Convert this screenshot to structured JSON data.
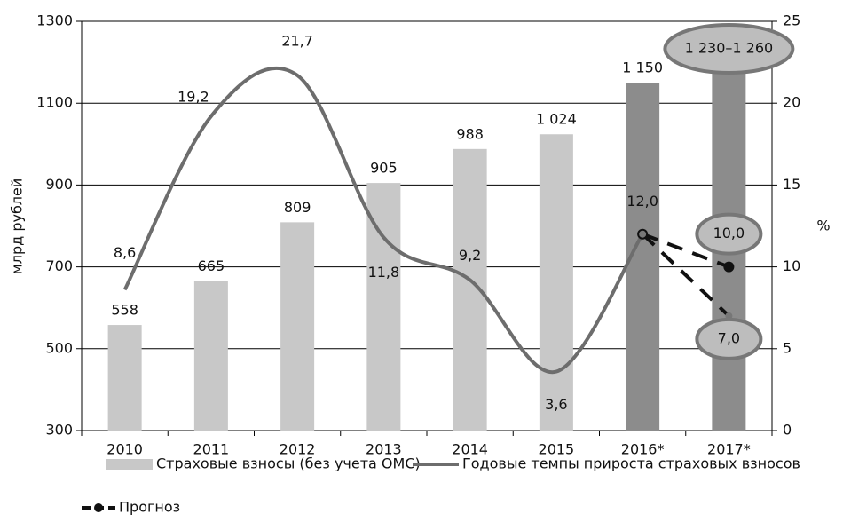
{
  "chart_data": {
    "type": "bar",
    "categories": [
      "2010",
      "2011",
      "2012",
      "2013",
      "2014",
      "2015",
      "2016*",
      "2017*"
    ],
    "ylabel": "млрд рублей",
    "y2label": "%",
    "ylim": [
      300,
      1300
    ],
    "yticks": [
      300,
      500,
      700,
      900,
      1100,
      1300
    ],
    "y2lim": [
      0,
      25
    ],
    "y2ticks": [
      0,
      5,
      10,
      15,
      20,
      25
    ],
    "grid": true,
    "legend": "bottom",
    "series": [
      {
        "name": "Страховые взносы (без учета ОМС)",
        "type": "bar",
        "color": "#c8c8c8",
        "colors": [
          "#c8c8c8",
          "#c8c8c8",
          "#c8c8c8",
          "#c8c8c8",
          "#c8c8c8",
          "#c8c8c8",
          "#8c8c8c",
          "#8c8c8c"
        ],
        "values": [
          558,
          665,
          809,
          905,
          988,
          1024,
          1150,
          1245
        ],
        "value_labels": [
          "558",
          "665",
          "809",
          "905",
          "988",
          "1 024",
          "1 150",
          "1 230–1 260"
        ]
      },
      {
        "name": "Годовые темпы прироста страховых взносов",
        "type": "line",
        "axis": "y2",
        "color": "#6d6d6d",
        "values": [
          8.6,
          19.2,
          21.7,
          11.8,
          9.2,
          3.6,
          12.0,
          null
        ],
        "value_labels": [
          "8,6",
          "19,2",
          "21,7",
          "11,8",
          "9,2",
          "3,6",
          null,
          null
        ]
      },
      {
        "name": "Прогноз",
        "type": "forecast",
        "axis": "y2",
        "color": "#111111",
        "values": [
          null,
          null,
          null,
          null,
          null,
          null,
          12.0,
          10.0
        ],
        "value_labels": [
          null,
          null,
          null,
          null,
          null,
          null,
          "12,0",
          "10,0"
        ],
        "values_alt": [
          null,
          null,
          null,
          null,
          null,
          null,
          12.0,
          7.0
        ],
        "value_labels_alt": [
          null,
          null,
          null,
          null,
          null,
          null,
          null,
          "7,0"
        ]
      }
    ]
  }
}
